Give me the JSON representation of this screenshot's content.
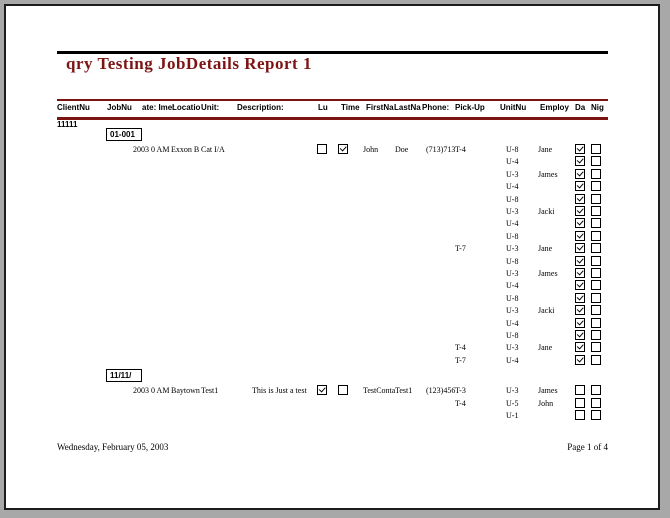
{
  "report": {
    "title": "qry Testing JobDetails Report 1",
    "client_number": "11111",
    "footer_date": "Wednesday, February 05, 2003",
    "footer_page": "Page 1 of 4"
  },
  "colors": {
    "title_accent": "#7D1414",
    "rule_maroon": "#7D1414",
    "rule_black": "#000000",
    "page_background": "#FFFFFF",
    "surround_background": "#A8A8A8"
  },
  "columns": [
    {
      "id": "clientnu",
      "label": "ClientNu"
    },
    {
      "id": "jobnu",
      "label": "JobNu"
    },
    {
      "id": "datetime",
      "label": "ate: Ime:"
    },
    {
      "id": "location",
      "label": "Locatio"
    },
    {
      "id": "unit",
      "label": "Unit:"
    },
    {
      "id": "description",
      "label": "Description:"
    },
    {
      "id": "lu",
      "label": "Lu"
    },
    {
      "id": "time",
      "label": "Time"
    },
    {
      "id": "firstna",
      "label": "FirstNa"
    },
    {
      "id": "lastna",
      "label": "LastNa"
    },
    {
      "id": "phone",
      "label": "Phone:"
    },
    {
      "id": "pickup",
      "label": "Pick-Up"
    },
    {
      "id": "unitnu",
      "label": "UnitNu"
    },
    {
      "id": "employ",
      "label": "Employ"
    },
    {
      "id": "da",
      "label": "Da"
    },
    {
      "id": "nig",
      "label": "Nig"
    }
  ],
  "groups": [
    {
      "job_number": "01-001",
      "detail": {
        "datetime": "2003 0 AM",
        "location": "Exxon B",
        "unit": "Cat I/A",
        "description": "",
        "lu_checked": false,
        "time_checked": true,
        "first_name": "John",
        "last_name": "Doe",
        "phone": "(713)713"
      },
      "rows": [
        {
          "pickup": "T-4",
          "unitnu": "U-8",
          "employ": "Jane",
          "da": true,
          "nig": false
        },
        {
          "pickup": "",
          "unitnu": "U-4",
          "employ": "",
          "da": true,
          "nig": false
        },
        {
          "pickup": "",
          "unitnu": "U-3",
          "employ": "James",
          "da": true,
          "nig": false
        },
        {
          "pickup": "",
          "unitnu": "U-4",
          "employ": "",
          "da": true,
          "nig": false
        },
        {
          "pickup": "",
          "unitnu": "U-8",
          "employ": "",
          "da": true,
          "nig": false
        },
        {
          "pickup": "",
          "unitnu": "U-3",
          "employ": "Jacki",
          "da": true,
          "nig": false
        },
        {
          "pickup": "",
          "unitnu": "U-4",
          "employ": "",
          "da": true,
          "nig": false
        },
        {
          "pickup": "",
          "unitnu": "U-8",
          "employ": "",
          "da": true,
          "nig": false
        },
        {
          "pickup": "T-7",
          "unitnu": "U-3",
          "employ": "Jane",
          "da": true,
          "nig": false
        },
        {
          "pickup": "",
          "unitnu": "U-8",
          "employ": "",
          "da": true,
          "nig": false
        },
        {
          "pickup": "",
          "unitnu": "U-3",
          "employ": "James",
          "da": true,
          "nig": false
        },
        {
          "pickup": "",
          "unitnu": "U-4",
          "employ": "",
          "da": true,
          "nig": false
        },
        {
          "pickup": "",
          "unitnu": "U-8",
          "employ": "",
          "da": true,
          "nig": false
        },
        {
          "pickup": "",
          "unitnu": "U-3",
          "employ": "Jacki",
          "da": true,
          "nig": false
        },
        {
          "pickup": "",
          "unitnu": "U-4",
          "employ": "",
          "da": true,
          "nig": false
        },
        {
          "pickup": "",
          "unitnu": "U-8",
          "employ": "",
          "da": true,
          "nig": false
        },
        {
          "pickup": "T-4",
          "unitnu": "U-3",
          "employ": "Jane",
          "da": true,
          "nig": false
        },
        {
          "pickup": "T-7",
          "unitnu": "U-4",
          "employ": "",
          "da": true,
          "nig": false
        }
      ]
    },
    {
      "job_number": "11/11/",
      "detail": {
        "datetime": "2003 0 AM",
        "location": "Baytown",
        "unit": "Test1",
        "description": "This is Just a test",
        "lu_checked": true,
        "time_checked": false,
        "first_name": "TestConta",
        "last_name": "Test1",
        "phone": "(123)456"
      },
      "rows": [
        {
          "pickup": "T-3",
          "unitnu": "U-3",
          "employ": "James",
          "da": false,
          "nig": false
        },
        {
          "pickup": "T-4",
          "unitnu": "U-5",
          "employ": "John",
          "da": false,
          "nig": false
        },
        {
          "pickup": "",
          "unitnu": "U-1",
          "employ": "",
          "da": false,
          "nig": false
        }
      ]
    }
  ]
}
